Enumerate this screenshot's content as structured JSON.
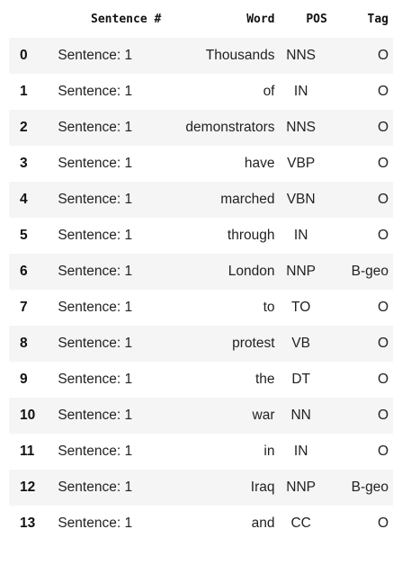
{
  "table": {
    "columns": [
      "",
      "Sentence #",
      "Word",
      "POS",
      "Tag"
    ],
    "rows": [
      {
        "index": "0",
        "sentence": "Sentence: 1",
        "word": "Thousands",
        "pos": "NNS",
        "tag": "O"
      },
      {
        "index": "1",
        "sentence": "Sentence: 1",
        "word": "of",
        "pos": "IN",
        "tag": "O"
      },
      {
        "index": "2",
        "sentence": "Sentence: 1",
        "word": "demonstrators",
        "pos": "NNS",
        "tag": "O"
      },
      {
        "index": "3",
        "sentence": "Sentence: 1",
        "word": "have",
        "pos": "VBP",
        "tag": "O"
      },
      {
        "index": "4",
        "sentence": "Sentence: 1",
        "word": "marched",
        "pos": "VBN",
        "tag": "O"
      },
      {
        "index": "5",
        "sentence": "Sentence: 1",
        "word": "through",
        "pos": "IN",
        "tag": "O"
      },
      {
        "index": "6",
        "sentence": "Sentence: 1",
        "word": "London",
        "pos": "NNP",
        "tag": "B-geo"
      },
      {
        "index": "7",
        "sentence": "Sentence: 1",
        "word": "to",
        "pos": "TO",
        "tag": "O"
      },
      {
        "index": "8",
        "sentence": "Sentence: 1",
        "word": "protest",
        "pos": "VB",
        "tag": "O"
      },
      {
        "index": "9",
        "sentence": "Sentence: 1",
        "word": "the",
        "pos": "DT",
        "tag": "O"
      },
      {
        "index": "10",
        "sentence": "Sentence: 1",
        "word": "war",
        "pos": "NN",
        "tag": "O"
      },
      {
        "index": "11",
        "sentence": "Sentence: 1",
        "word": "in",
        "pos": "IN",
        "tag": "O"
      },
      {
        "index": "12",
        "sentence": "Sentence: 1",
        "word": "Iraq",
        "pos": "NNP",
        "tag": "B-geo"
      },
      {
        "index": "13",
        "sentence": "Sentence: 1",
        "word": "and",
        "pos": "CC",
        "tag": "O"
      }
    ]
  },
  "colors": {
    "stripe": "#f5f5f5",
    "background": "#ffffff",
    "text": "#222222"
  }
}
